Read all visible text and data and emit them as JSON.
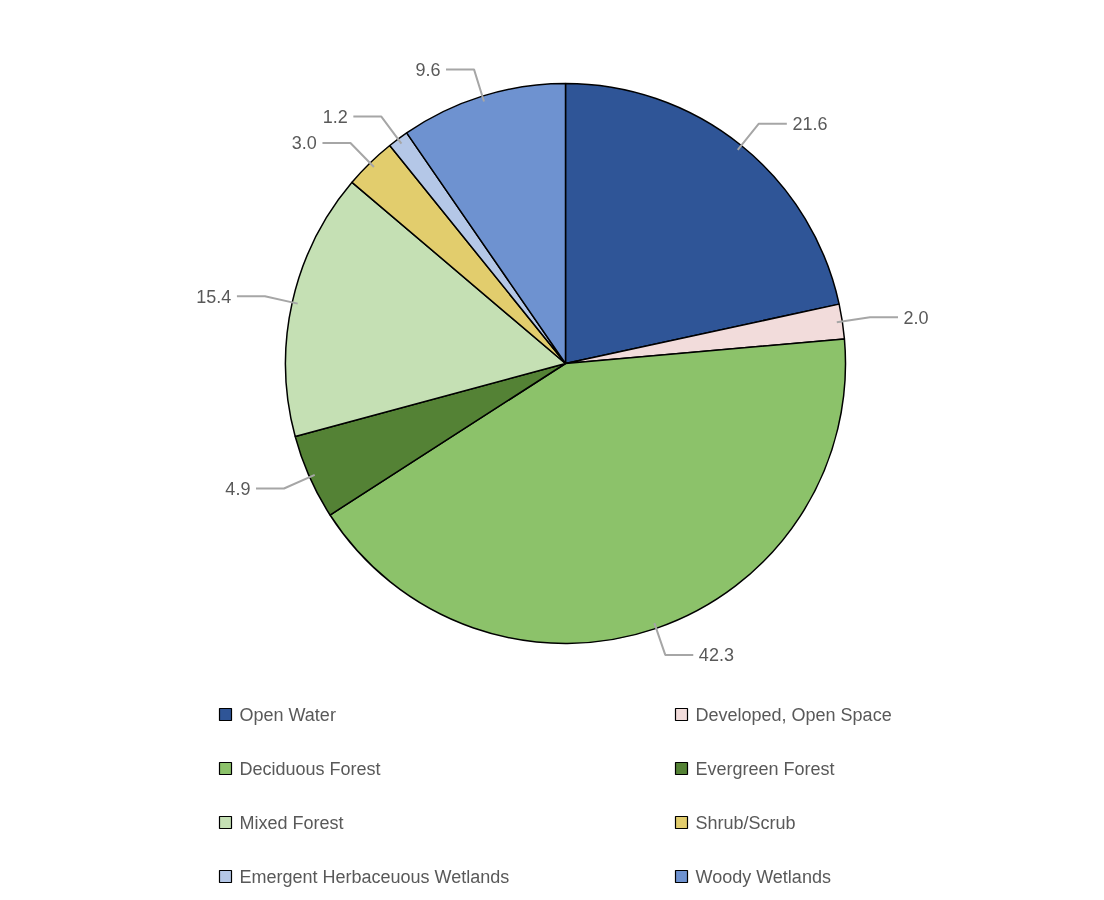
{
  "chart_data": {
    "type": "pie",
    "categories": [
      "Open Water",
      "Developed, Open Space",
      "Deciduous Forest",
      "Evergreen Forest",
      "Mixed Forest",
      "Shrub/Scrub",
      "Emergent Herbaceuous Wetlands",
      "Woody Wetlands"
    ],
    "values": [
      21.6,
      2.0,
      42.3,
      4.9,
      15.4,
      3.0,
      1.2,
      9.6
    ],
    "colors": [
      "#2f5597",
      "#f2dcdb",
      "#8cc26a",
      "#548235",
      "#c5e0b4",
      "#e2cd6d",
      "#b4c7e7",
      "#6e92d0"
    ],
    "value_labels": [
      "21.6",
      "2.0",
      "42.3",
      "4.9",
      "15.4",
      "3.0",
      "1.2",
      "9.6"
    ],
    "legend": "bottom"
  }
}
